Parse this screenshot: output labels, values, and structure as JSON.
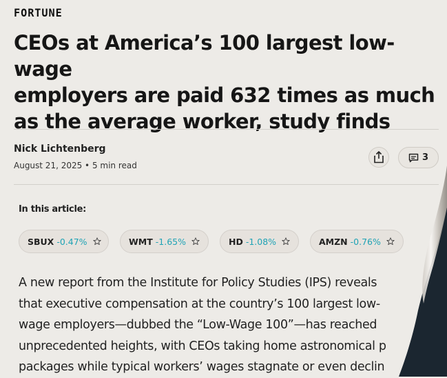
{
  "brand": {
    "name": "FORTUNE"
  },
  "article": {
    "headline_lines": [
      "CEOs at America’s 100 largest low-wage",
      "employers are paid 632 times as much",
      "as the average worker, study finds"
    ],
    "author": "Nick Lichtenberg",
    "date": "August 21, 2025",
    "read_time": "5 min read",
    "meta_line": "August 21, 2025 • 5 min read",
    "comment_count": "3",
    "in_this_article_label": "In this article:",
    "tickers": [
      {
        "symbol": "SBUX",
        "change": "-0.47%"
      },
      {
        "symbol": "WMT",
        "change": "-1.65%"
      },
      {
        "symbol": "HD",
        "change": "-1.08%"
      },
      {
        "symbol": "AMZN",
        "change": "-0.76%"
      }
    ],
    "body_lines": [
      "A new report from the Institute for Policy Studies (IPS) reveals",
      "that executive compensation at the country’s 100 largest low-",
      "wage employers—dubbed the “Low-Wage 100”—has reached",
      "unprecedented heights, with CEOs taking home astronomical p",
      "packages while typical workers’ wages stagnate or even declin"
    ]
  },
  "icons": {
    "share": "share-icon",
    "comment": "comment-icon",
    "star": "star-outline-icon"
  },
  "colors": {
    "background": "#edebe7",
    "negative_change": "#1fa3b5",
    "text": "#1b1b1b"
  }
}
